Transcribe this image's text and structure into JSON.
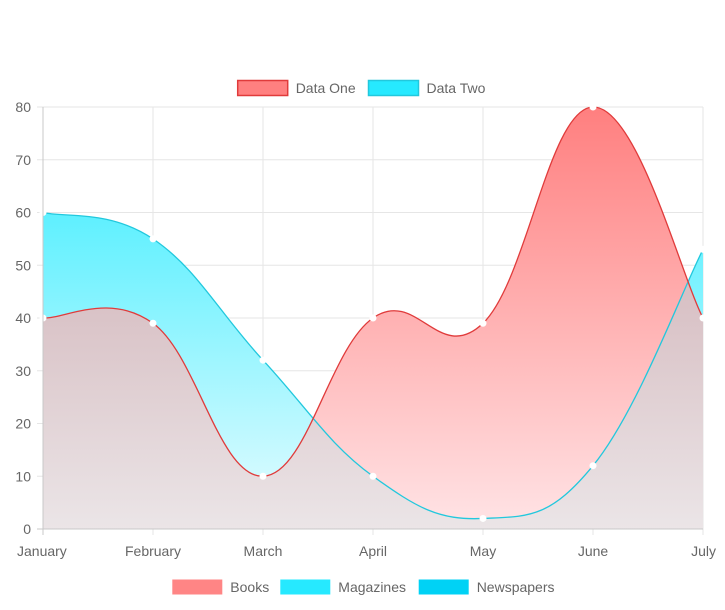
{
  "chart_data": {
    "type": "area",
    "categories": [
      "January",
      "February",
      "March",
      "April",
      "May",
      "June",
      "July"
    ],
    "series": [
      {
        "name": "Data One",
        "values": [
          40,
          39,
          10,
          40,
          39,
          80,
          40
        ],
        "color": "#ff6b6b",
        "line_color": "#e03b3b"
      },
      {
        "name": "Data Two",
        "values": [
          60,
          55,
          32,
          10,
          2,
          12,
          53
        ],
        "color": "#1ee6ff",
        "line_color": "#22c8dd"
      }
    ],
    "ylim": [
      0,
      80
    ],
    "yticks": [
      0,
      10,
      20,
      30,
      40,
      50,
      60,
      70,
      80
    ],
    "grid": true,
    "legend_top": {
      "placement": "top-center",
      "items": [
        {
          "label": "Data One",
          "color": "#ff8080",
          "border": "#e03b3b"
        },
        {
          "label": "Data Two",
          "color": "#26e9ff",
          "border": "#22c8dd"
        }
      ]
    },
    "legend_bottom": {
      "placement": "bottom-center",
      "items": [
        {
          "label": "Books",
          "color": "#ff8585"
        },
        {
          "label": "Magazines",
          "color": "#26e9ff"
        },
        {
          "label": "Newspapers",
          "color": "#00d2f5"
        }
      ]
    }
  }
}
